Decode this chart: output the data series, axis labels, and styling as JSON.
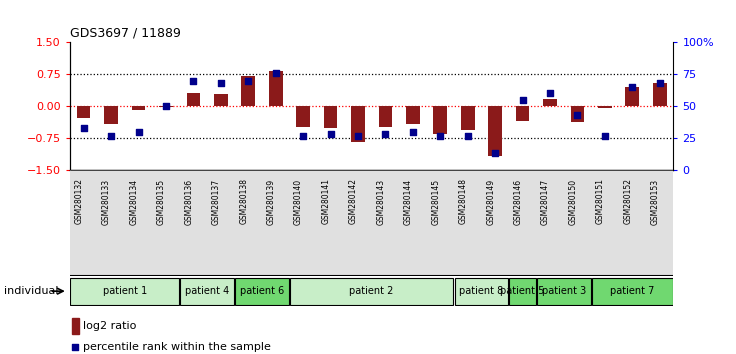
{
  "title": "GDS3697 / 11889",
  "samples": [
    "GSM280132",
    "GSM280133",
    "GSM280134",
    "GSM280135",
    "GSM280136",
    "GSM280137",
    "GSM280138",
    "GSM280139",
    "GSM280140",
    "GSM280141",
    "GSM280142",
    "GSM280143",
    "GSM280144",
    "GSM280145",
    "GSM280148",
    "GSM280149",
    "GSM280146",
    "GSM280147",
    "GSM280150",
    "GSM280151",
    "GSM280152",
    "GSM280153"
  ],
  "log2_ratio": [
    -0.28,
    -0.42,
    -0.1,
    -0.02,
    0.3,
    0.28,
    0.72,
    0.83,
    -0.48,
    -0.52,
    -0.85,
    -0.5,
    -0.42,
    -0.65,
    -0.55,
    -1.18,
    -0.35,
    0.18,
    -0.38,
    -0.05,
    0.45,
    0.55
  ],
  "percentile": [
    33,
    27,
    30,
    50,
    70,
    68,
    70,
    76,
    27,
    28,
    27,
    28,
    30,
    27,
    27,
    13,
    55,
    60,
    43,
    27,
    65,
    68
  ],
  "patients": [
    {
      "label": "patient 1",
      "start": 0,
      "end": 4,
      "color": "#c8eec8"
    },
    {
      "label": "patient 4",
      "start": 4,
      "end": 6,
      "color": "#c8eec8"
    },
    {
      "label": "patient 6",
      "start": 6,
      "end": 8,
      "color": "#70d870"
    },
    {
      "label": "patient 2",
      "start": 8,
      "end": 14,
      "color": "#c8eec8"
    },
    {
      "label": "patient 8",
      "start": 14,
      "end": 16,
      "color": "#c8eec8"
    },
    {
      "label": "patient 5",
      "start": 16,
      "end": 17,
      "color": "#70d870"
    },
    {
      "label": "patient 3",
      "start": 17,
      "end": 19,
      "color": "#70d870"
    },
    {
      "label": "patient 7",
      "start": 19,
      "end": 22,
      "color": "#70d870"
    }
  ],
  "ylim": [
    -1.5,
    1.5
  ],
  "y2lim": [
    0,
    100
  ],
  "bar_color": "#8b1a1a",
  "dot_color": "#00008b",
  "yticks_left": [
    -1.5,
    -0.75,
    0,
    0.75,
    1.5
  ],
  "yticks_right": [
    0,
    25,
    50,
    75,
    100
  ],
  "dotted_lines": [
    -0.75,
    0,
    0.75
  ],
  "zero_line_color": "red",
  "grid_line_color": "black",
  "bg_color": "#e0e0e0",
  "plot_bg": "white"
}
